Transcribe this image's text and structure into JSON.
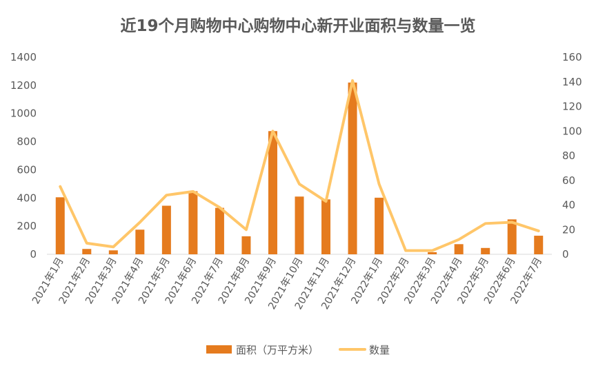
{
  "chart_data": {
    "type": "bar",
    "title": "近19个月购物中心购物中心新开业面积与数量一览",
    "categories": [
      "2021年1月",
      "2021年2月",
      "2021年3月",
      "2021年4月",
      "2021年5月",
      "2021年6月",
      "2021年7月",
      "2021年8月",
      "2021年9月",
      "2021年10月",
      "2021年11月",
      "2021年12月",
      "2022年1月",
      "2022年2月",
      "2022年3月",
      "2022年4月",
      "2022年5月",
      "2022年6月",
      "2022年7月"
    ],
    "series": [
      {
        "name": "面积（万平方米）",
        "chart": "bar",
        "axis": "left",
        "color": "#E57B1E",
        "values": [
          405,
          38,
          28,
          175,
          345,
          448,
          330,
          128,
          875,
          410,
          390,
          1220,
          402,
          0,
          15,
          72,
          45,
          248,
          132
        ]
      },
      {
        "name": "数量",
        "chart": "line",
        "axis": "right",
        "color": "#FFC669",
        "values": [
          55,
          9,
          6,
          26,
          48,
          51,
          38,
          20,
          100,
          57,
          43,
          141,
          57,
          3,
          3,
          12,
          25,
          26,
          19
        ]
      }
    ],
    "ylim_left": [
      0,
      1400
    ],
    "yticks_left": [
      0,
      200,
      400,
      600,
      800,
      1000,
      1200,
      1400
    ],
    "ylim_right": [
      0,
      160
    ],
    "yticks_right": [
      0,
      20,
      40,
      60,
      80,
      100,
      120,
      140,
      160
    ],
    "legend_position": "bottom",
    "grid": false
  }
}
